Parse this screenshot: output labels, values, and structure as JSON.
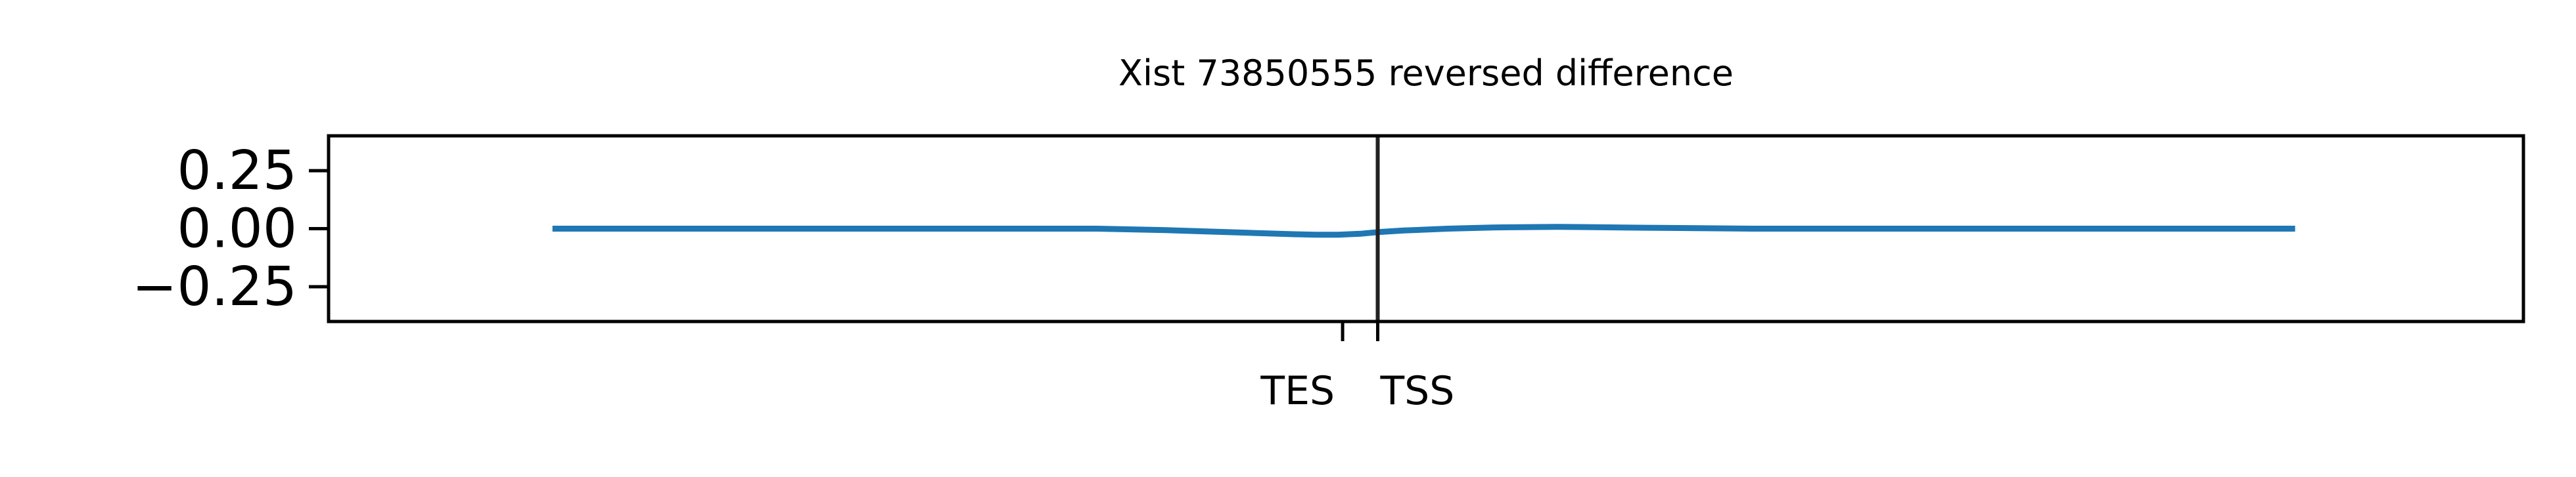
{
  "chart_data": {
    "type": "line",
    "title": "Xist 73850555 reversed difference",
    "xlabel": "",
    "ylabel": "",
    "xlim": [
      0,
      100
    ],
    "ylim": [
      -0.4,
      0.4
    ],
    "yticks": [
      0.25,
      0.0,
      -0.25
    ],
    "ytick_labels": [
      "0.25",
      "0.00",
      "−0.25"
    ],
    "xticks": [
      {
        "label": "TES",
        "value": 46.2
      },
      {
        "label": "TSS",
        "value": 47.8
      }
    ],
    "vline": {
      "value": 47.8,
      "color": "#222222"
    },
    "grid": false,
    "series": [
      {
        "name": "reversed difference",
        "color": "#1f77b4",
        "x": [
          10.2,
          15,
          20,
          25,
          30,
          35,
          38,
          40,
          42,
          44,
          45,
          46,
          47,
          47.8,
          49,
          51,
          53,
          56,
          60,
          65,
          70,
          80,
          89.6
        ],
        "y": [
          0.0,
          0.0,
          0.0,
          0.0,
          0.0,
          0.0,
          -0.006,
          -0.012,
          -0.018,
          -0.024,
          -0.026,
          -0.026,
          -0.022,
          -0.015,
          -0.008,
          0.0,
          0.005,
          0.008,
          0.004,
          0.0,
          0.0,
          0.0,
          0.0
        ]
      }
    ]
  }
}
